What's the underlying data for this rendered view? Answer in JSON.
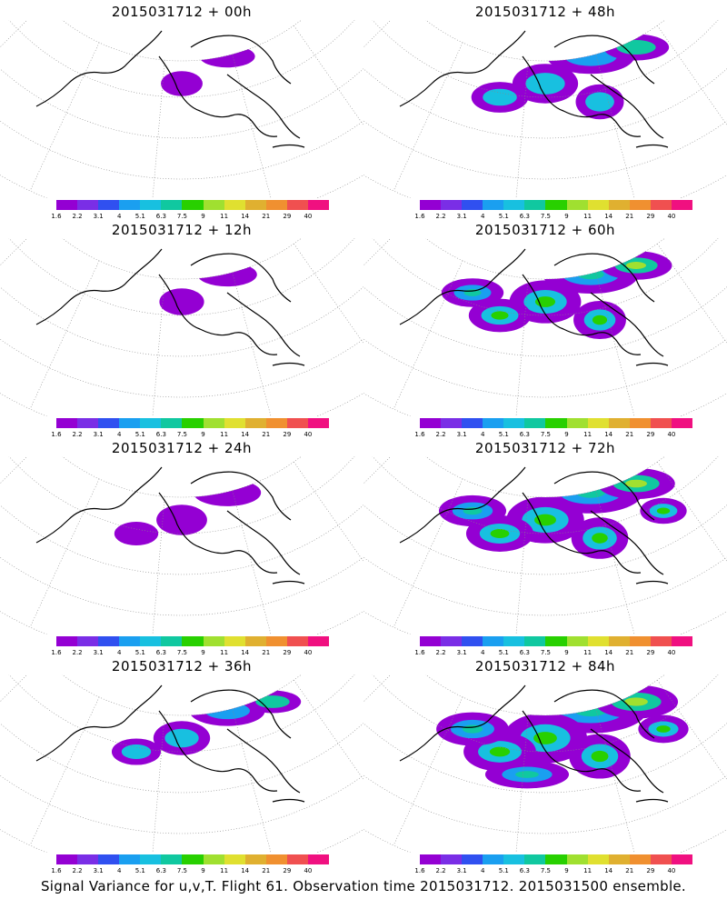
{
  "panels": [
    {
      "title": "2015031712 + 00h",
      "intensity": 0.15
    },
    {
      "title": "2015031712 + 48h",
      "intensity": 0.55
    },
    {
      "title": "2015031712 + 12h",
      "intensity": 0.2
    },
    {
      "title": "2015031712 + 60h",
      "intensity": 0.65
    },
    {
      "title": "2015031712 + 24h",
      "intensity": 0.3
    },
    {
      "title": "2015031712 + 72h",
      "intensity": 0.75
    },
    {
      "title": "2015031712 + 36h",
      "intensity": 0.4
    },
    {
      "title": "2015031712 + 84h",
      "intensity": 0.85
    }
  ],
  "colorbar": {
    "labels": [
      "1.6",
      "2.2",
      "3.1",
      "4",
      "5.1",
      "6.3",
      "7.5",
      "9",
      "11",
      "14",
      "21",
      "29",
      "40"
    ],
    "colors": [
      "#9400d3",
      "#7a2ee6",
      "#3050f0",
      "#1a9ff0",
      "#18c0e0",
      "#10c8a0",
      "#28d000",
      "#a0e030",
      "#e0e030",
      "#e0b030",
      "#f09030",
      "#f05050",
      "#f01080"
    ]
  },
  "footer": "Signal Variance for u,v,T. Flight 61. Observation time 2015031712. 2015031500 ensemble."
}
